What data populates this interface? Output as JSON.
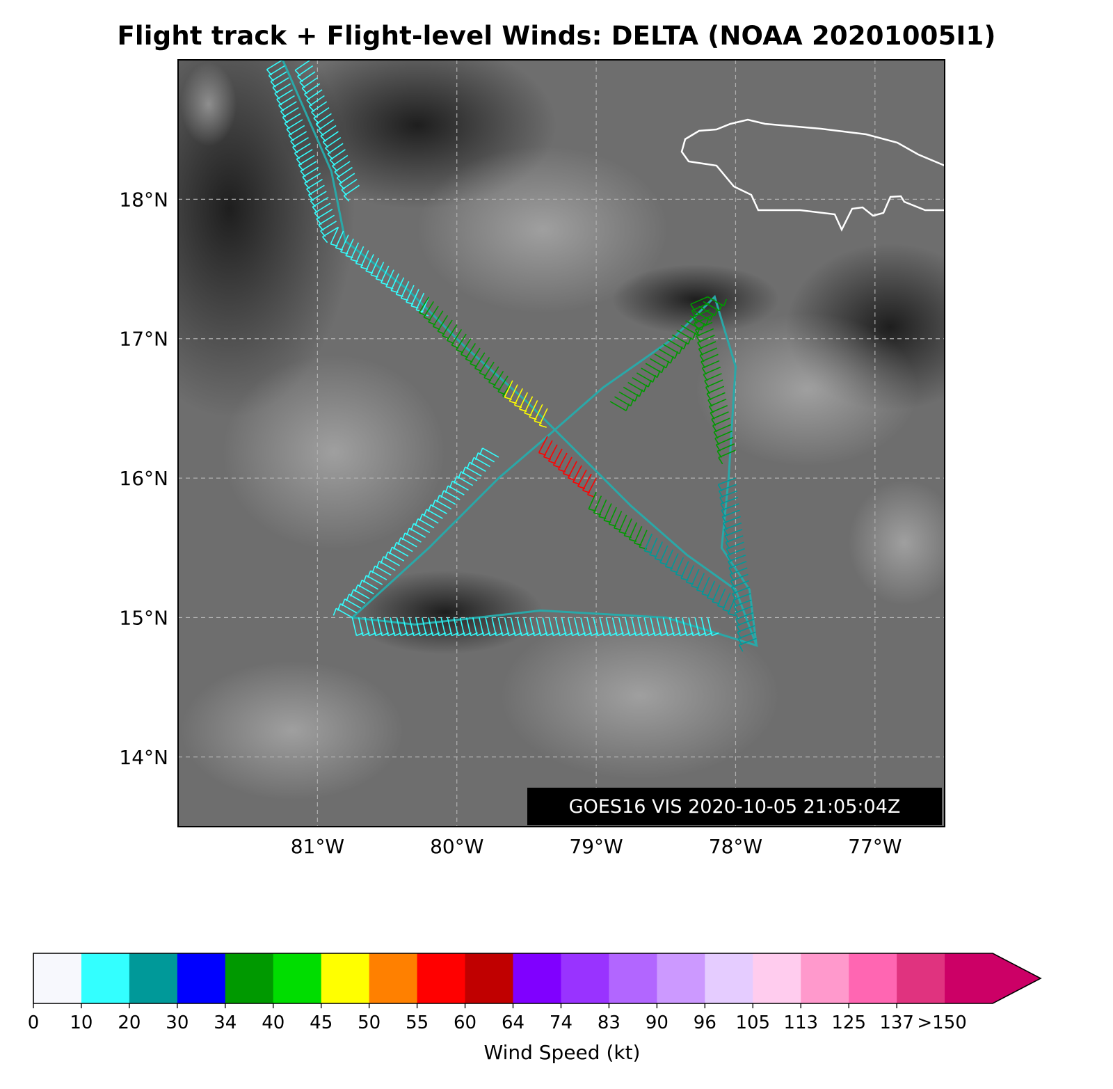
{
  "title": "Flight track + Flight-level Winds: DELTA (NOAA 20201005I1)",
  "stamp": "GOES16 VIS 2020-10-05 21:05:04Z",
  "map": {
    "lon_range": [
      -82.0,
      -76.5
    ],
    "lat_range": [
      13.5,
      19.0
    ],
    "lat_ticks": [
      {
        "value": 18,
        "label": "18°N"
      },
      {
        "value": 17,
        "label": "17°N"
      },
      {
        "value": 16,
        "label": "16°N"
      },
      {
        "value": 15,
        "label": "15°N"
      },
      {
        "value": 14,
        "label": "14°N"
      }
    ],
    "lon_ticks": [
      {
        "value": -81,
        "label": "81°W"
      },
      {
        "value": -80,
        "label": "80°W"
      },
      {
        "value": -79,
        "label": "79°W"
      },
      {
        "value": -78,
        "label": "78°W"
      },
      {
        "value": -77,
        "label": "77°W"
      }
    ],
    "coastline_color": "#ffffff",
    "gridlines": true,
    "flight_track": [
      {
        "lon": -81.25,
        "lat": 19.0
      },
      {
        "lon": -80.9,
        "lat": 18.2
      },
      {
        "lon": -80.8,
        "lat": 17.7
      },
      {
        "lon": -80.35,
        "lat": 17.35
      },
      {
        "lon": -79.95,
        "lat": 16.95
      },
      {
        "lon": -79.5,
        "lat": 16.55
      },
      {
        "lon": -79.1,
        "lat": 16.15
      },
      {
        "lon": -78.75,
        "lat": 15.8
      },
      {
        "lon": -78.35,
        "lat": 15.45
      },
      {
        "lon": -78.0,
        "lat": 15.2
      },
      {
        "lon": -77.85,
        "lat": 14.8
      },
      {
        "lon": -78.5,
        "lat": 15.0
      },
      {
        "lon": -79.4,
        "lat": 15.05
      },
      {
        "lon": -80.3,
        "lat": 14.95
      },
      {
        "lon": -80.75,
        "lat": 15.0
      },
      {
        "lon": -80.2,
        "lat": 15.5
      },
      {
        "lon": -79.7,
        "lat": 16.0
      },
      {
        "lon": -79.35,
        "lat": 16.3
      },
      {
        "lon": -78.95,
        "lat": 16.65
      },
      {
        "lon": -78.45,
        "lat": 17.0
      },
      {
        "lon": -78.15,
        "lat": 17.3
      },
      {
        "lon": -78.0,
        "lat": 16.8
      },
      {
        "lon": -78.05,
        "lat": 16.0
      },
      {
        "lon": -78.1,
        "lat": 15.5
      },
      {
        "lon": -77.9,
        "lat": 15.2
      },
      {
        "lon": -77.85,
        "lat": 14.8
      }
    ],
    "legs": [
      {
        "from": [
          -81.25,
          19.0
        ],
        "to": [
          -80.85,
          17.8
        ],
        "speed": 15
      },
      {
        "from": [
          -81.05,
          19.0
        ],
        "to": [
          -80.7,
          18.1
        ],
        "speed": 15
      },
      {
        "from": [
          -80.85,
          17.8
        ],
        "to": [
          -80.2,
          17.3
        ],
        "speed": 18
      },
      {
        "from": [
          -80.2,
          17.3
        ],
        "to": [
          -79.6,
          16.7
        ],
        "speed": 38
      },
      {
        "from": [
          -79.6,
          16.7
        ],
        "to": [
          -79.35,
          16.5
        ],
        "speed": 48
      },
      {
        "from": [
          -79.35,
          16.3
        ],
        "to": [
          -79.0,
          16.0
        ],
        "speed": 58
      },
      {
        "from": [
          -79.0,
          15.9
        ],
        "to": [
          -78.6,
          15.6
        ],
        "speed": 36
      },
      {
        "from": [
          -78.6,
          15.6
        ],
        "to": [
          -78.0,
          15.15
        ],
        "speed": 20
      },
      {
        "from": [
          -79.7,
          16.15
        ],
        "to": [
          -80.75,
          15.0
        ],
        "speed": 18
      },
      {
        "from": [
          -80.75,
          15.0
        ],
        "to": [
          -78.2,
          15.0
        ],
        "speed": 17
      },
      {
        "from": [
          -78.9,
          16.55
        ],
        "to": [
          -78.2,
          17.3
        ],
        "speed": 38
      },
      {
        "from": [
          -78.2,
          17.3
        ],
        "to": [
          -78.0,
          16.2
        ],
        "speed": 38
      },
      {
        "from": [
          -78.0,
          16.0
        ],
        "to": [
          -77.85,
          14.85
        ],
        "speed": 22
      }
    ]
  },
  "colorbar": {
    "label": "Wind Speed (kt)",
    "tick_labels": [
      "0",
      "10",
      "20",
      "30",
      "34",
      "40",
      "45",
      "50",
      "55",
      "60",
      "64",
      "74",
      "83",
      "90",
      "96",
      "105",
      "113",
      "125",
      "137",
      ">150"
    ],
    "colors": [
      "#f7f8fd",
      "#33ffff",
      "#009999",
      "#0000ff",
      "#009900",
      "#00dd00",
      "#ffff00",
      "#ff8000",
      "#ff0000",
      "#c00000",
      "#8000ff",
      "#9933ff",
      "#b266ff",
      "#cc99ff",
      "#e5ccff",
      "#ffccee",
      "#ff99cc",
      "#ff66b2",
      "#e0337f",
      "#cc0066"
    ]
  }
}
